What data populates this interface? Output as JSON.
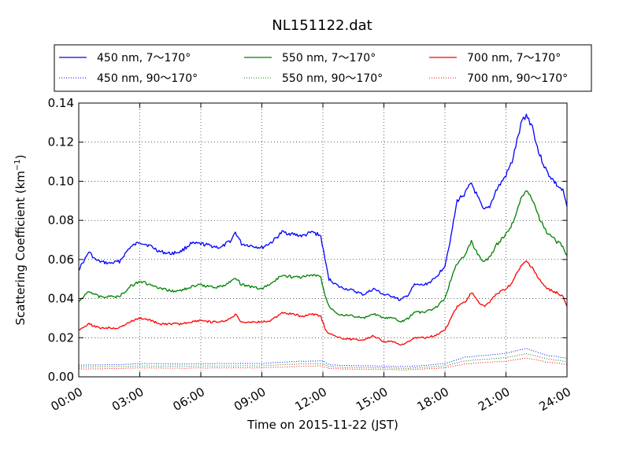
{
  "chart_data": {
    "type": "line",
    "title": "NL151122.dat",
    "xlabel": "Time on 2015-11-22 (JST)",
    "ylabel_main": "Scattering Coefficient (km",
    "ylabel_sup": "−1",
    "ylabel_close": ")",
    "xlim": [
      0,
      24
    ],
    "ylim": [
      0,
      0.14
    ],
    "grid": true,
    "legend_position": "top",
    "x_ticks": [
      {
        "value": 0,
        "label": "00:00"
      },
      {
        "value": 3,
        "label": "03:00"
      },
      {
        "value": 6,
        "label": "06:00"
      },
      {
        "value": 9,
        "label": "09:00"
      },
      {
        "value": 12,
        "label": "12:00"
      },
      {
        "value": 15,
        "label": "15:00"
      },
      {
        "value": 18,
        "label": "18:00"
      },
      {
        "value": 21,
        "label": "21:00"
      },
      {
        "value": 24,
        "label": "24:00"
      }
    ],
    "y_ticks": [
      {
        "value": 0.0,
        "label": "0.00"
      },
      {
        "value": 0.02,
        "label": "0.02"
      },
      {
        "value": 0.04,
        "label": "0.04"
      },
      {
        "value": 0.06,
        "label": "0.06"
      },
      {
        "value": 0.08,
        "label": "0.08"
      },
      {
        "value": 0.1,
        "label": "0.10"
      },
      {
        "value": 0.12,
        "label": "0.12"
      },
      {
        "value": 0.14,
        "label": "0.14"
      }
    ],
    "series": [
      {
        "name": "450 nm, 7～170°",
        "color": "#0000ff",
        "style": "solid",
        "points": [
          [
            0,
            0.055
          ],
          [
            0.3,
            0.06
          ],
          [
            0.5,
            0.064
          ],
          [
            0.8,
            0.06
          ],
          [
            1,
            0.059
          ],
          [
            1.5,
            0.058
          ],
          [
            2,
            0.059
          ],
          [
            2.5,
            0.066
          ],
          [
            3,
            0.069
          ],
          [
            3.5,
            0.067
          ],
          [
            4,
            0.064
          ],
          [
            4.5,
            0.063
          ],
          [
            5,
            0.064
          ],
          [
            5.5,
            0.068
          ],
          [
            6,
            0.068
          ],
          [
            6.5,
            0.067
          ],
          [
            7,
            0.066
          ],
          [
            7.5,
            0.07
          ],
          [
            7.7,
            0.074
          ],
          [
            8,
            0.068
          ],
          [
            8.5,
            0.067
          ],
          [
            9,
            0.066
          ],
          [
            9.5,
            0.069
          ],
          [
            10,
            0.074
          ],
          [
            10.5,
            0.073
          ],
          [
            11,
            0.072
          ],
          [
            11.5,
            0.074
          ],
          [
            11.9,
            0.072
          ],
          [
            12.1,
            0.06
          ],
          [
            12.3,
            0.05
          ],
          [
            12.8,
            0.046
          ],
          [
            13.5,
            0.044
          ],
          [
            14,
            0.042
          ],
          [
            14.5,
            0.045
          ],
          [
            15,
            0.042
          ],
          [
            15.5,
            0.041
          ],
          [
            15.8,
            0.039
          ],
          [
            16.2,
            0.042
          ],
          [
            16.5,
            0.047
          ],
          [
            17,
            0.047
          ],
          [
            17.5,
            0.05
          ],
          [
            18,
            0.057
          ],
          [
            18.3,
            0.072
          ],
          [
            18.6,
            0.09
          ],
          [
            19,
            0.094
          ],
          [
            19.3,
            0.099
          ],
          [
            19.6,
            0.092
          ],
          [
            19.9,
            0.085
          ],
          [
            20.2,
            0.087
          ],
          [
            20.5,
            0.095
          ],
          [
            21,
            0.103
          ],
          [
            21.3,
            0.11
          ],
          [
            21.6,
            0.123
          ],
          [
            21.8,
            0.131
          ],
          [
            22,
            0.134
          ],
          [
            22.3,
            0.128
          ],
          [
            22.6,
            0.115
          ],
          [
            23,
            0.105
          ],
          [
            23.5,
            0.098
          ],
          [
            23.8,
            0.095
          ],
          [
            24,
            0.087
          ]
        ]
      },
      {
        "name": "550 nm, 7～170°",
        "color": "#008000",
        "style": "solid",
        "points": [
          [
            0,
            0.038
          ],
          [
            0.3,
            0.042
          ],
          [
            0.5,
            0.044
          ],
          [
            1,
            0.041
          ],
          [
            2,
            0.041
          ],
          [
            2.5,
            0.046
          ],
          [
            3,
            0.049
          ],
          [
            3.5,
            0.047
          ],
          [
            4,
            0.045
          ],
          [
            4.5,
            0.044
          ],
          [
            5,
            0.044
          ],
          [
            5.5,
            0.046
          ],
          [
            6,
            0.047
          ],
          [
            6.5,
            0.046
          ],
          [
            7,
            0.046
          ],
          [
            7.5,
            0.049
          ],
          [
            7.7,
            0.051
          ],
          [
            8,
            0.047
          ],
          [
            8.5,
            0.046
          ],
          [
            9,
            0.045
          ],
          [
            9.5,
            0.048
          ],
          [
            10,
            0.052
          ],
          [
            10.5,
            0.051
          ],
          [
            11,
            0.051
          ],
          [
            11.5,
            0.052
          ],
          [
            11.9,
            0.051
          ],
          [
            12.1,
            0.042
          ],
          [
            12.3,
            0.036
          ],
          [
            12.8,
            0.032
          ],
          [
            13.5,
            0.031
          ],
          [
            14,
            0.03
          ],
          [
            14.5,
            0.032
          ],
          [
            15,
            0.03
          ],
          [
            15.5,
            0.03
          ],
          [
            15.8,
            0.028
          ],
          [
            16.2,
            0.03
          ],
          [
            16.5,
            0.033
          ],
          [
            17,
            0.033
          ],
          [
            17.5,
            0.035
          ],
          [
            18,
            0.04
          ],
          [
            18.3,
            0.05
          ],
          [
            18.6,
            0.058
          ],
          [
            19,
            0.063
          ],
          [
            19.3,
            0.069
          ],
          [
            19.6,
            0.063
          ],
          [
            19.9,
            0.059
          ],
          [
            20.2,
            0.061
          ],
          [
            20.5,
            0.067
          ],
          [
            21,
            0.073
          ],
          [
            21.3,
            0.078
          ],
          [
            21.6,
            0.087
          ],
          [
            21.8,
            0.092
          ],
          [
            22,
            0.096
          ],
          [
            22.3,
            0.091
          ],
          [
            22.6,
            0.082
          ],
          [
            23,
            0.074
          ],
          [
            23.5,
            0.069
          ],
          [
            23.8,
            0.067
          ],
          [
            24,
            0.062
          ]
        ]
      },
      {
        "name": "700 nm, 7～170°",
        "color": "#ff0000",
        "style": "solid",
        "points": [
          [
            0,
            0.024
          ],
          [
            0.3,
            0.026
          ],
          [
            0.5,
            0.027
          ],
          [
            1,
            0.025
          ],
          [
            2,
            0.025
          ],
          [
            2.5,
            0.028
          ],
          [
            3,
            0.03
          ],
          [
            3.5,
            0.029
          ],
          [
            4,
            0.027
          ],
          [
            4.5,
            0.027
          ],
          [
            5,
            0.027
          ],
          [
            5.5,
            0.028
          ],
          [
            6,
            0.029
          ],
          [
            6.5,
            0.028
          ],
          [
            7,
            0.028
          ],
          [
            7.5,
            0.03
          ],
          [
            7.7,
            0.032
          ],
          [
            8,
            0.028
          ],
          [
            8.5,
            0.028
          ],
          [
            9,
            0.028
          ],
          [
            9.5,
            0.029
          ],
          [
            10,
            0.033
          ],
          [
            10.5,
            0.032
          ],
          [
            11,
            0.031
          ],
          [
            11.5,
            0.032
          ],
          [
            11.9,
            0.031
          ],
          [
            12.1,
            0.025
          ],
          [
            12.3,
            0.022
          ],
          [
            12.8,
            0.02
          ],
          [
            13.5,
            0.019
          ],
          [
            14,
            0.019
          ],
          [
            14.5,
            0.021
          ],
          [
            15,
            0.018
          ],
          [
            15.5,
            0.018
          ],
          [
            15.8,
            0.016
          ],
          [
            16.2,
            0.018
          ],
          [
            16.5,
            0.02
          ],
          [
            17,
            0.02
          ],
          [
            17.5,
            0.021
          ],
          [
            18,
            0.024
          ],
          [
            18.3,
            0.03
          ],
          [
            18.6,
            0.036
          ],
          [
            19,
            0.038
          ],
          [
            19.3,
            0.043
          ],
          [
            19.6,
            0.039
          ],
          [
            19.9,
            0.036
          ],
          [
            20.2,
            0.038
          ],
          [
            20.5,
            0.042
          ],
          [
            21,
            0.045
          ],
          [
            21.3,
            0.048
          ],
          [
            21.6,
            0.054
          ],
          [
            21.8,
            0.057
          ],
          [
            22,
            0.059
          ],
          [
            22.3,
            0.056
          ],
          [
            22.6,
            0.05
          ],
          [
            23,
            0.045
          ],
          [
            23.5,
            0.043
          ],
          [
            23.8,
            0.041
          ],
          [
            24,
            0.036
          ]
        ]
      },
      {
        "name": "450 nm, 90～170°",
        "color": "#0000ff",
        "style": "dotted",
        "points": [
          [
            0,
            0.006
          ],
          [
            2,
            0.0062
          ],
          [
            3,
            0.0068
          ],
          [
            5,
            0.0065
          ],
          [
            7,
            0.0068
          ],
          [
            9,
            0.0068
          ],
          [
            10,
            0.0075
          ],
          [
            11,
            0.008
          ],
          [
            12,
            0.0082
          ],
          [
            12.3,
            0.0062
          ],
          [
            13,
            0.0058
          ],
          [
            15,
            0.0055
          ],
          [
            16,
            0.0052
          ],
          [
            17,
            0.0058
          ],
          [
            18,
            0.0068
          ],
          [
            19,
            0.01
          ],
          [
            20,
            0.011
          ],
          [
            21,
            0.012
          ],
          [
            22,
            0.0145
          ],
          [
            23,
            0.011
          ],
          [
            24,
            0.0095
          ]
        ]
      },
      {
        "name": "550 nm, 90～170°",
        "color": "#008000",
        "style": "dotted",
        "points": [
          [
            0,
            0.005
          ],
          [
            2,
            0.0052
          ],
          [
            3,
            0.0056
          ],
          [
            5,
            0.0054
          ],
          [
            7,
            0.0056
          ],
          [
            9,
            0.0056
          ],
          [
            10,
            0.0062
          ],
          [
            11,
            0.0066
          ],
          [
            12,
            0.0068
          ],
          [
            12.3,
            0.0052
          ],
          [
            13,
            0.0048
          ],
          [
            15,
            0.0046
          ],
          [
            16,
            0.0043
          ],
          [
            17,
            0.0048
          ],
          [
            18,
            0.0056
          ],
          [
            19,
            0.0082
          ],
          [
            20,
            0.009
          ],
          [
            21,
            0.0098
          ],
          [
            22,
            0.0118
          ],
          [
            23,
            0.0092
          ],
          [
            24,
            0.0078
          ]
        ]
      },
      {
        "name": "700 nm, 90～170°",
        "color": "#ff0000",
        "style": "dotted",
        "points": [
          [
            0,
            0.004
          ],
          [
            2,
            0.0042
          ],
          [
            3,
            0.0046
          ],
          [
            5,
            0.0044
          ],
          [
            7,
            0.0046
          ],
          [
            9,
            0.0046
          ],
          [
            10,
            0.005
          ],
          [
            11,
            0.0054
          ],
          [
            12,
            0.0056
          ],
          [
            12.3,
            0.0042
          ],
          [
            13,
            0.004
          ],
          [
            15,
            0.0038
          ],
          [
            16,
            0.0035
          ],
          [
            17,
            0.004
          ],
          [
            18,
            0.0046
          ],
          [
            19,
            0.0066
          ],
          [
            20,
            0.0074
          ],
          [
            21,
            0.008
          ],
          [
            22,
            0.0096
          ],
          [
            23,
            0.0076
          ],
          [
            24,
            0.0064
          ]
        ]
      }
    ]
  }
}
